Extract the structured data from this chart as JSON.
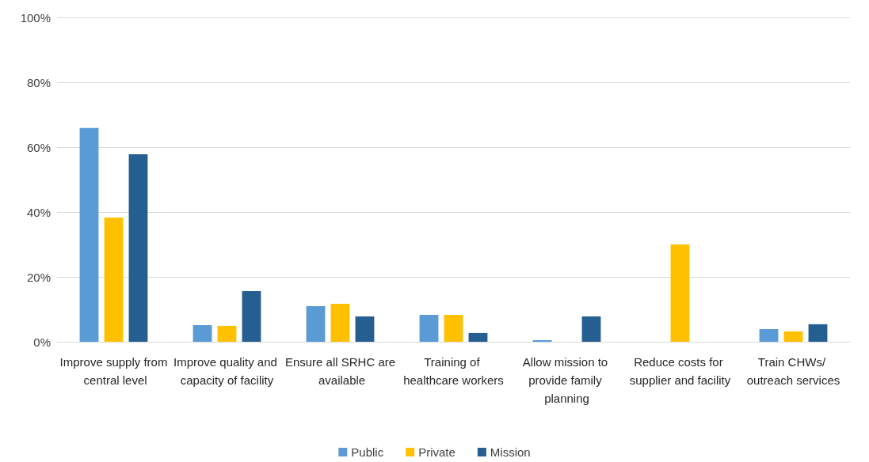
{
  "chart_data": {
    "type": "bar",
    "categories": [
      "Improve supply from central level",
      "Improve quality and capacity of facility",
      "Ensure all SRHC are available",
      "Training of healthcare workers",
      "Allow mission to provide family planning",
      "Reduce costs for supplier and facility",
      "Train CHWs/ outreach services"
    ],
    "series": [
      {
        "name": "Public",
        "color": "#5b9bd5",
        "values": [
          65.9,
          5.1,
          11.0,
          8.3,
          0.5,
          0,
          3.9
        ]
      },
      {
        "name": "Private",
        "color": "#ffc000",
        "values": [
          38.3,
          4.9,
          11.7,
          8.3,
          0,
          30.0,
          3.2
        ]
      },
      {
        "name": "Mission",
        "color": "#255e91",
        "values": [
          57.8,
          15.6,
          7.8,
          2.7,
          7.8,
          0,
          5.4
        ]
      }
    ],
    "ylim": [
      0,
      100
    ],
    "yticks": [
      {
        "value": 0,
        "label": "0%"
      },
      {
        "value": 20,
        "label": "20%"
      },
      {
        "value": 40,
        "label": "40%"
      },
      {
        "value": 60,
        "label": "60%"
      },
      {
        "value": 80,
        "label": "80%"
      },
      {
        "value": 100,
        "label": "100%"
      }
    ],
    "grid": "y",
    "legend": "bottom"
  }
}
